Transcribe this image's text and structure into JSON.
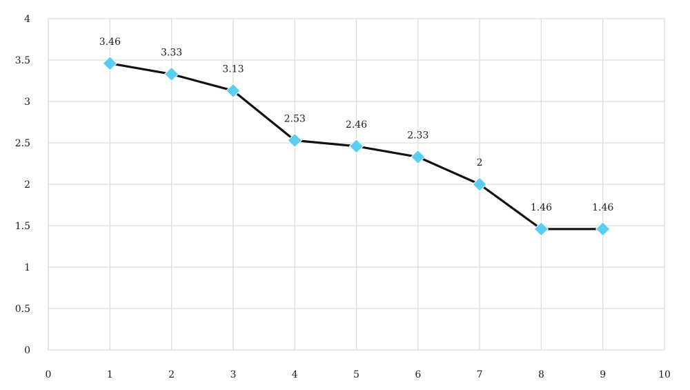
{
  "chart_data": {
    "type": "line",
    "title": "",
    "xlabel": "",
    "ylabel": "",
    "xlim": [
      0,
      10
    ],
    "ylim": [
      0,
      4
    ],
    "x_ticks": [
      "0",
      "1",
      "2",
      "3",
      "4",
      "5",
      "6",
      "7",
      "8",
      "9",
      "10"
    ],
    "y_ticks": [
      "0",
      "0.5",
      "1",
      "1.5",
      "2",
      "2.5",
      "3",
      "3.5",
      "4"
    ],
    "grid": true,
    "legend": "none",
    "series": [
      {
        "x": [
          1,
          2,
          3,
          4,
          5,
          6,
          7,
          8,
          9
        ],
        "y": [
          3.46,
          3.33,
          3.13,
          2.53,
          2.46,
          2.33,
          2,
          1.46,
          1.46
        ],
        "labels": [
          "3.46",
          "3.33",
          "3.13",
          "2.53",
          "2.46",
          "2.33",
          "2",
          "1.46",
          "1.46"
        ],
        "line_color": "#111111",
        "marker": "diamond",
        "marker_color": "#5bcdf0"
      }
    ],
    "colors": {
      "grid": "#d7dde1",
      "background": "#ffffff"
    }
  }
}
